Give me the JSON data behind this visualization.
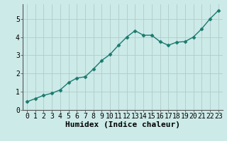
{
  "x": [
    0,
    1,
    2,
    3,
    4,
    5,
    6,
    7,
    8,
    9,
    10,
    11,
    12,
    13,
    14,
    15,
    16,
    17,
    18,
    19,
    20,
    21,
    22,
    23
  ],
  "y": [
    0.45,
    0.62,
    0.8,
    0.92,
    1.1,
    1.5,
    1.75,
    1.82,
    2.25,
    2.72,
    3.05,
    3.55,
    4.0,
    4.35,
    4.1,
    4.1,
    3.75,
    3.55,
    3.72,
    3.75,
    4.0,
    4.45,
    5.0,
    5.45
  ],
  "xlabel": "Humidex (Indice chaleur)",
  "ylim": [
    0,
    5.8
  ],
  "xlim": [
    -0.5,
    23.5
  ],
  "yticks": [
    0,
    1,
    2,
    3,
    4,
    5
  ],
  "xticks": [
    0,
    1,
    2,
    3,
    4,
    5,
    6,
    7,
    8,
    9,
    10,
    11,
    12,
    13,
    14,
    15,
    16,
    17,
    18,
    19,
    20,
    21,
    22,
    23
  ],
  "line_color": "#1a7a6e",
  "marker": "D",
  "marker_size": 2.5,
  "bg_color": "#cceae8",
  "grid_color": "#b0cccc",
  "xlabel_fontsize": 8,
  "tick_fontsize": 7,
  "line_width": 1.0
}
